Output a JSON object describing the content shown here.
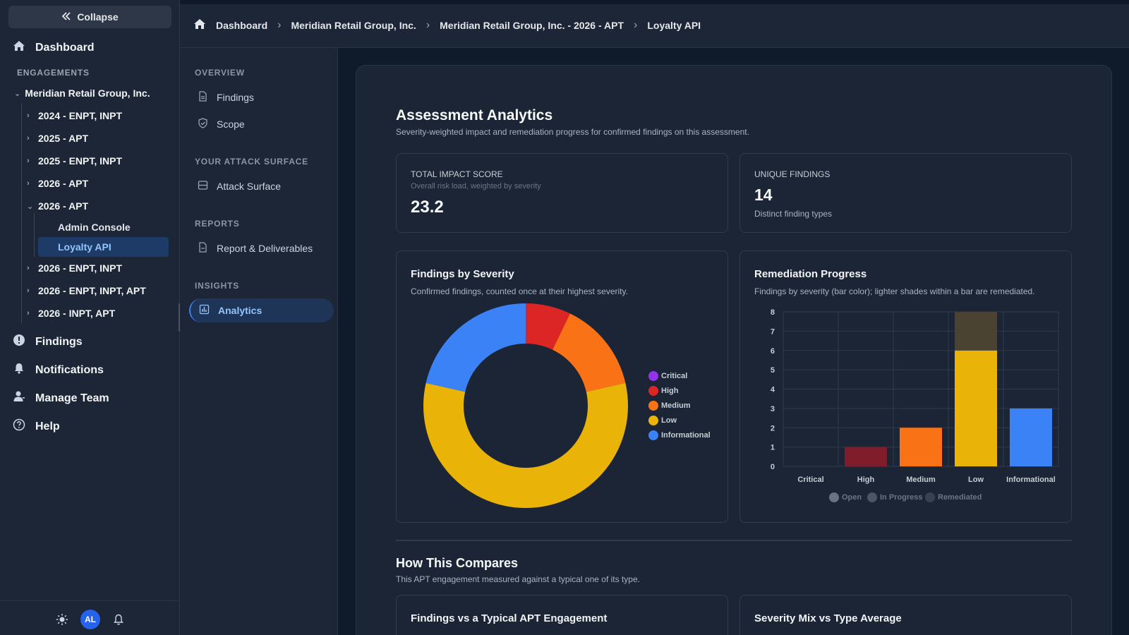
{
  "sidebar": {
    "collapse_label": "Collapse",
    "dashboard_label": "Dashboard",
    "engagements_heading": "ENGAGEMENTS",
    "client_name": "Meridian Retail Group, Inc.",
    "engagements": [
      {
        "label": "2024 - ENPT, INPT",
        "expanded": false
      },
      {
        "label": "2025 - APT",
        "expanded": false
      },
      {
        "label": "2025 - ENPT, INPT",
        "expanded": false
      },
      {
        "label": "2026 - APT",
        "expanded": false
      },
      {
        "label": "2026 - APT",
        "expanded": true
      },
      {
        "label": "2026 - ENPT, INPT",
        "expanded": false
      },
      {
        "label": "2026 - ENPT, INPT, APT",
        "expanded": false
      },
      {
        "label": "2026 - INPT, APT",
        "expanded": false
      }
    ],
    "sub_items": [
      {
        "label": "Admin Console",
        "active": false
      },
      {
        "label": "Loyalty API",
        "active": true
      }
    ],
    "bottom_nav": [
      {
        "label": "Findings",
        "icon": "alert-circle-icon"
      },
      {
        "label": "Notifications",
        "icon": "bell-icon"
      },
      {
        "label": "Manage Team",
        "icon": "user-icon"
      },
      {
        "label": "Help",
        "icon": "help-circle-icon"
      }
    ],
    "avatar_initials": "AL"
  },
  "breadcrumb": [
    "Dashboard",
    "Meridian Retail Group, Inc.",
    "Meridian Retail Group, Inc. - 2026 - APT",
    "Loyalty API"
  ],
  "subnav": {
    "overview_heading": "OVERVIEW",
    "findings_label": "Findings",
    "scope_label": "Scope",
    "attack_surface_heading": "YOUR ATTACK SURFACE",
    "attack_surface_label": "Attack Surface",
    "reports_heading": "REPORTS",
    "reports_label": "Report & Deliverables",
    "insights_heading": "INSIGHTS",
    "analytics_label": "Analytics"
  },
  "analytics": {
    "title": "Assessment Analytics",
    "subtitle": "Severity-weighted impact and remediation progress for confirmed findings on this assessment.",
    "total_impact": {
      "label": "TOTAL IMPACT SCORE",
      "sub": "Overall risk load, weighted by severity",
      "value": "23.2"
    },
    "unique_findings": {
      "label": "UNIQUE FINDINGS",
      "value": "14",
      "caption": "Distinct finding types"
    },
    "severity_card": {
      "title": "Findings by Severity",
      "subtitle": "Confirmed findings, counted once at their highest severity."
    },
    "remediation_card": {
      "title": "Remediation Progress",
      "subtitle": "Findings by severity (bar color); lighter shades within a bar are remediated."
    },
    "compare_title": "How This Compares",
    "compare_subtitle": "This APT engagement measured against a typical one of its type.",
    "compare_card1_title": "Findings vs a Typical APT Engagement",
    "compare_card2_title": "Severity Mix vs Type Average"
  },
  "colors": {
    "critical": "#9333ea",
    "high": "#dc2626",
    "medium": "#f97316",
    "low": "#eab308",
    "informational": "#3b82f6",
    "high_open": "#7f1d2a",
    "low_remediated": "#4a4332",
    "accent": "#2563eb"
  },
  "chart_data": [
    {
      "type": "pie",
      "title": "Findings by Severity",
      "categories": [
        "Critical",
        "High",
        "Medium",
        "Low",
        "Informational"
      ],
      "values": [
        0,
        1,
        2,
        8,
        3
      ],
      "legend": "right"
    },
    {
      "type": "bar",
      "title": "Remediation Progress",
      "categories": [
        "Critical",
        "High",
        "Medium",
        "Low",
        "Informational"
      ],
      "series": [
        {
          "name": "Open",
          "values": [
            0,
            1,
            2,
            6,
            3
          ]
        },
        {
          "name": "In Progress",
          "values": [
            0,
            0,
            0,
            0,
            0
          ]
        },
        {
          "name": "Remediated",
          "values": [
            0,
            0,
            0,
            2,
            0
          ]
        }
      ],
      "ylim": [
        0,
        8
      ],
      "yticks": [
        0,
        1,
        2,
        3,
        4,
        5,
        6,
        7,
        8
      ],
      "stacked": true,
      "grid": true,
      "legend": "bottom"
    }
  ]
}
